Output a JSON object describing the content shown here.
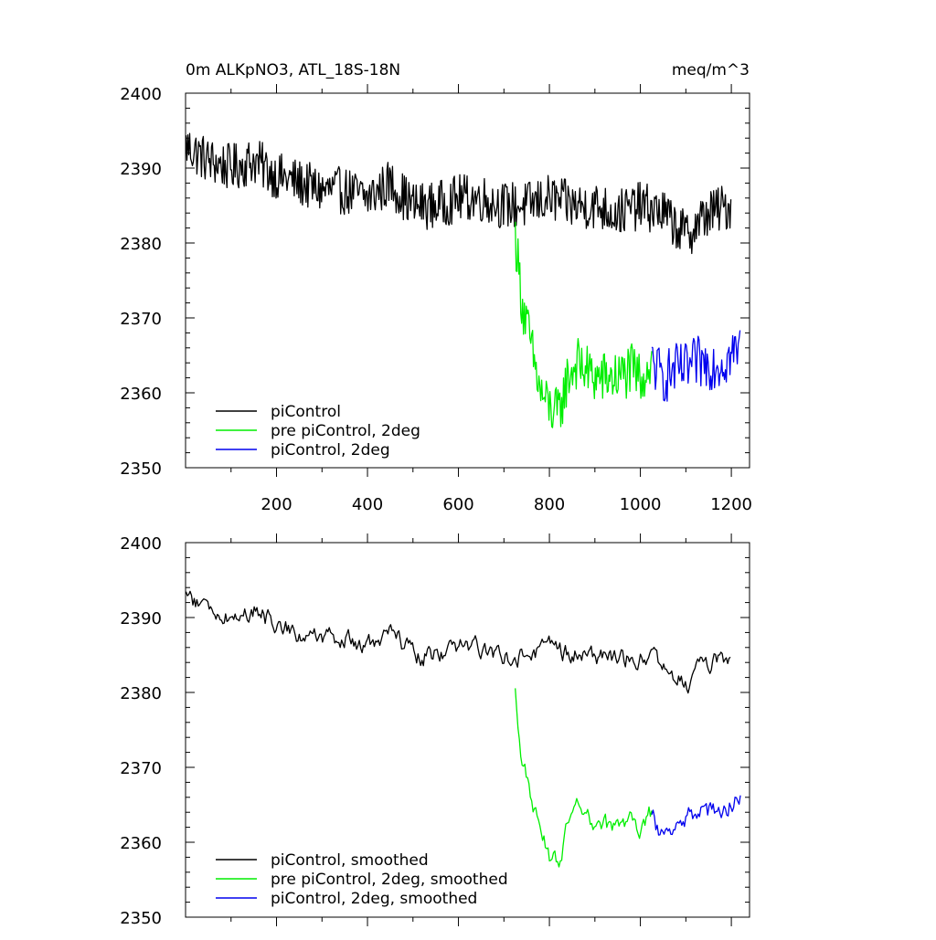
{
  "chart_data": [
    {
      "type": "line",
      "title_left": "0m ALKpNO3, ATL_18S-18N",
      "title_right": "meq/m^3",
      "xlim": [
        0,
        1240
      ],
      "ylim": [
        2350,
        2400
      ],
      "xticks": [
        200,
        400,
        600,
        800,
        1000,
        1200
      ],
      "xtick_labels": [
        "200",
        "400",
        "600",
        "800",
        "1000",
        "1200"
      ],
      "yticks": [
        2350,
        2360,
        2370,
        2380,
        2390,
        2400
      ],
      "ytick_labels": [
        "2350",
        "2360",
        "2370",
        "2380",
        "2390",
        "2400"
      ],
      "legend_position": "lower-left",
      "series": [
        {
          "name": "piControl",
          "color": "#000000",
          "x_start": 1,
          "x_end": 1200,
          "points": [
            [
              1,
              2393
            ],
            [
              50,
              2391
            ],
            [
              100,
              2390
            ],
            [
              150,
              2391
            ],
            [
              200,
              2389
            ],
            [
              250,
              2388
            ],
            [
              300,
              2387
            ],
            [
              350,
              2387
            ],
            [
              400,
              2386
            ],
            [
              450,
              2388
            ],
            [
              500,
              2385
            ],
            [
              550,
              2385
            ],
            [
              600,
              2386
            ],
            [
              650,
              2386
            ],
            [
              700,
              2385
            ],
            [
              750,
              2385
            ],
            [
              800,
              2386
            ],
            [
              850,
              2385
            ],
            [
              900,
              2385
            ],
            [
              950,
              2384
            ],
            [
              1000,
              2385
            ],
            [
              1050,
              2384
            ],
            [
              1100,
              2381
            ],
            [
              1150,
              2384
            ],
            [
              1200,
              2385
            ]
          ],
          "noise": 3.2
        },
        {
          "name": "pre piControl, 2deg",
          "color": "#00ee00",
          "x_start": 725,
          "x_end": 1025,
          "points": [
            [
              725,
              2381
            ],
            [
              740,
              2372
            ],
            [
              760,
              2366
            ],
            [
              780,
              2360
            ],
            [
              800,
              2358
            ],
            [
              820,
              2357
            ],
            [
              840,
              2362
            ],
            [
              860,
              2364
            ],
            [
              880,
              2363
            ],
            [
              900,
              2362
            ],
            [
              920,
              2362
            ],
            [
              950,
              2362
            ],
            [
              980,
              2363
            ],
            [
              1000,
              2362
            ],
            [
              1025,
              2364
            ]
          ],
          "noise": 3.6
        },
        {
          "name": "piControl, 2deg",
          "color": "#0000ee",
          "x_start": 1025,
          "x_end": 1220,
          "points": [
            [
              1025,
              2364
            ],
            [
              1050,
              2362
            ],
            [
              1075,
              2363
            ],
            [
              1100,
              2363
            ],
            [
              1125,
              2364
            ],
            [
              1150,
              2364
            ],
            [
              1175,
              2364
            ],
            [
              1200,
              2365
            ],
            [
              1220,
              2366
            ]
          ],
          "noise": 3.6
        }
      ]
    },
    {
      "type": "line",
      "xlim": [
        0,
        1240
      ],
      "ylim": [
        2350,
        2400
      ],
      "xticks": [
        200,
        400,
        600,
        800,
        1000,
        1200
      ],
      "yticks": [
        2350,
        2360,
        2370,
        2380,
        2390,
        2400
      ],
      "ytick_labels": [
        "2350",
        "2360",
        "2370",
        "2380",
        "2390",
        "2400"
      ],
      "legend_position": "lower-left",
      "series": [
        {
          "name": "piControl, smoothed",
          "color": "#000000",
          "x_start": 1,
          "x_end": 1200,
          "points": [
            [
              1,
              2393
            ],
            [
              50,
              2391
            ],
            [
              100,
              2390
            ],
            [
              150,
              2391
            ],
            [
              200,
              2389
            ],
            [
              250,
              2388
            ],
            [
              300,
              2387
            ],
            [
              350,
              2387
            ],
            [
              400,
              2386
            ],
            [
              450,
              2388
            ],
            [
              500,
              2385
            ],
            [
              550,
              2385
            ],
            [
              600,
              2386
            ],
            [
              650,
              2386
            ],
            [
              700,
              2385
            ],
            [
              750,
              2385
            ],
            [
              800,
              2386
            ],
            [
              850,
              2385
            ],
            [
              900,
              2385
            ],
            [
              950,
              2384
            ],
            [
              1000,
              2385
            ],
            [
              1050,
              2384
            ],
            [
              1100,
              2381
            ],
            [
              1150,
              2384
            ],
            [
              1200,
              2385
            ]
          ],
          "noise": 1.6
        },
        {
          "name": "pre piControl, 2deg, smoothed",
          "color": "#00ee00",
          "x_start": 725,
          "x_end": 1025,
          "points": [
            [
              725,
              2380
            ],
            [
              740,
              2371
            ],
            [
              760,
              2366
            ],
            [
              780,
              2361
            ],
            [
              800,
              2358
            ],
            [
              820,
              2357.5
            ],
            [
              840,
              2362
            ],
            [
              860,
              2364
            ],
            [
              880,
              2363
            ],
            [
              900,
              2362
            ],
            [
              920,
              2362
            ],
            [
              950,
              2362
            ],
            [
              980,
              2363
            ],
            [
              1000,
              2362
            ],
            [
              1025,
              2364
            ]
          ],
          "noise": 1.7
        },
        {
          "name": "piControl, 2deg, smoothed",
          "color": "#0000ee",
          "x_start": 1025,
          "x_end": 1220,
          "points": [
            [
              1025,
              2363
            ],
            [
              1050,
              2361
            ],
            [
              1075,
              2363
            ],
            [
              1100,
              2363
            ],
            [
              1125,
              2364
            ],
            [
              1150,
              2364
            ],
            [
              1175,
              2364
            ],
            [
              1200,
              2365
            ],
            [
              1220,
              2366
            ]
          ],
          "noise": 1.8
        }
      ]
    }
  ]
}
